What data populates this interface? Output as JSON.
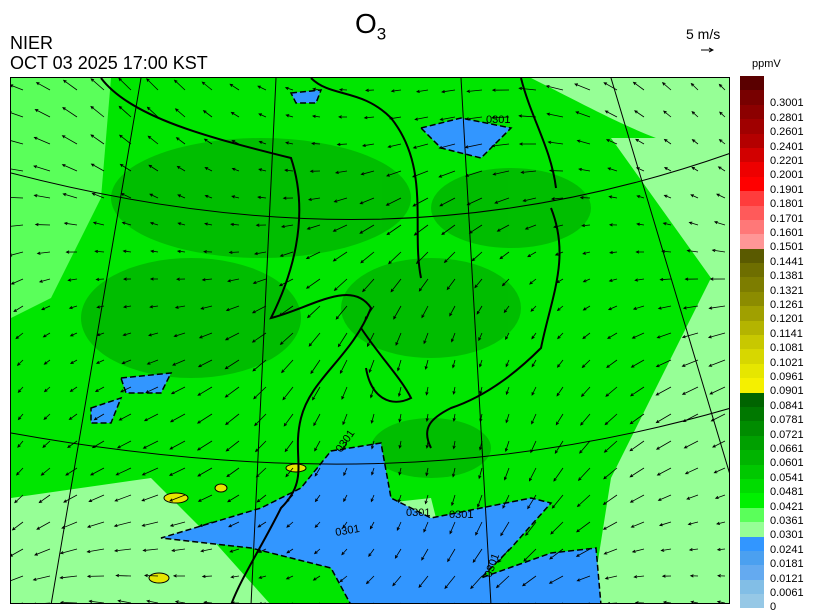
{
  "header": {
    "species": "O",
    "species_sub": "3",
    "organization": "NIER",
    "datetime": "OCT 03 2025 17:00 KST",
    "wind_reference": "5 m/s"
  },
  "legend": {
    "unit": "ppmV",
    "labels": [
      "0.3001",
      "0.2801",
      "0.2601",
      "0.2401",
      "0.2201",
      "0.2001",
      "0.1901",
      "0.1801",
      "0.1701",
      "0.1601",
      "0.1501",
      "0.1441",
      "0.1381",
      "0.1321",
      "0.1261",
      "0.1201",
      "0.1141",
      "0.1081",
      "0.1021",
      "0.0961",
      "0.0901",
      "0.0841",
      "0.0781",
      "0.0721",
      "0.0661",
      "0.0601",
      "0.0541",
      "0.0481",
      "0.0421",
      "0.0361",
      "0.0301",
      "0.0241",
      "0.0181",
      "0.0121",
      "0.0061",
      "0"
    ],
    "colors": [
      "#5a0000",
      "#780000",
      "#8c0000",
      "#a00000",
      "#b40000",
      "#d20000",
      "#ee0000",
      "#ff0000",
      "#ff3c3c",
      "#ff5a5a",
      "#ff7878",
      "#ff9696",
      "#5a5a00",
      "#6e6e00",
      "#7d7d00",
      "#8c8c00",
      "#a0a000",
      "#b4b400",
      "#c8c800",
      "#d7d700",
      "#e6e600",
      "#f5f000",
      "#006400",
      "#007800",
      "#008c00",
      "#00a000",
      "#00b400",
      "#00c800",
      "#00dc00",
      "#00f000",
      "#5aff5a",
      "#96ff96",
      "#3296ff",
      "#4ba0f0",
      "#64aaf0",
      "#82bee6",
      "#96c8e6"
    ]
  },
  "map": {
    "contour_label": "0301",
    "colors": {
      "background": "#00e600",
      "dark": "#00b400",
      "light": "#96ff96",
      "mid": "#5aff5a",
      "low": "#3296ff",
      "high": "#e6e600"
    }
  }
}
